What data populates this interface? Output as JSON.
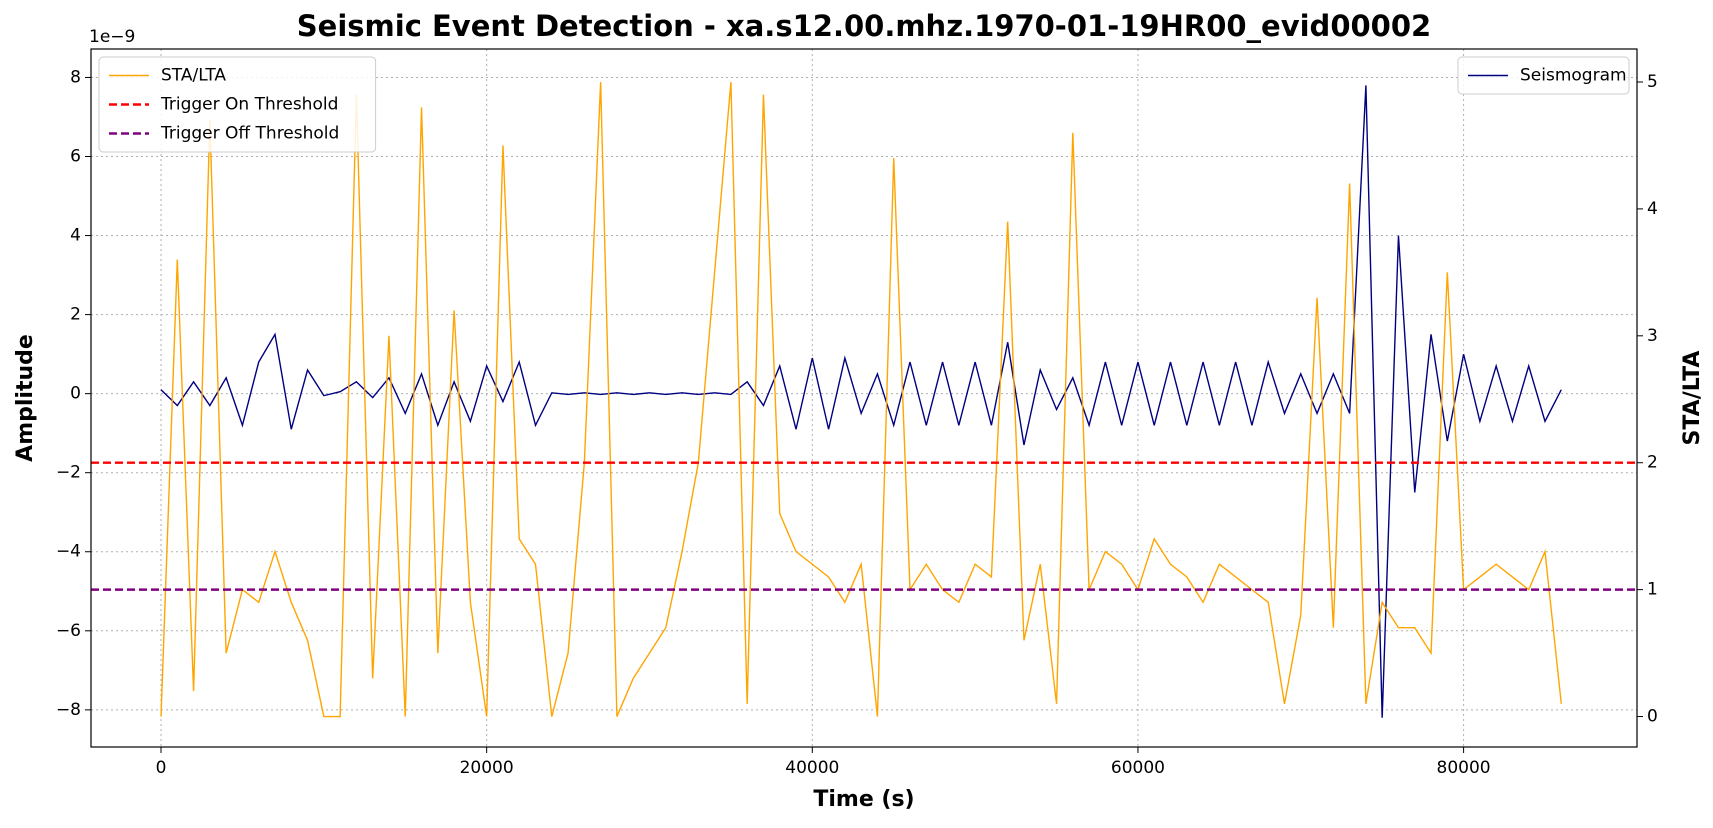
{
  "chart_data": {
    "type": "line",
    "title": "Seismic Event Detection - xa.s12.00.mhz.1970-01-19HR00_evid00002",
    "x_label": "Time (s)",
    "y_label": "Amplitude",
    "y2_label": "STA/LTA",
    "y_offset_label": "1e−9",
    "xlim": [
      -4300,
      90650
    ],
    "ylim": [
      -8.94,
      8.72
    ],
    "y2lim": [
      -0.24,
      5.26
    ],
    "xticks": [
      0,
      20000,
      40000,
      60000,
      80000
    ],
    "yticks": [
      {
        "value": -8,
        "label": "−8"
      },
      {
        "value": -6,
        "label": "−6"
      },
      {
        "value": -4,
        "label": "−4"
      },
      {
        "value": -2,
        "label": "−2"
      },
      0,
      2,
      4,
      6,
      8
    ],
    "y2ticks": [
      0,
      1,
      2,
      3,
      4,
      5
    ],
    "grid": true,
    "x": [
      0,
      1000,
      2000,
      3000,
      4000,
      5000,
      6000,
      7000,
      8000,
      9000,
      10000,
      11000,
      12000,
      13000,
      14000,
      15000,
      16000,
      17000,
      18000,
      19000,
      20000,
      21000,
      22000,
      23000,
      24000,
      25000,
      26000,
      27000,
      28000,
      29000,
      30000,
      31000,
      32000,
      33000,
      34000,
      35000,
      36000,
      37000,
      38000,
      39000,
      40000,
      41000,
      42000,
      43000,
      44000,
      45000,
      46000,
      47000,
      48000,
      49000,
      50000,
      51000,
      52000,
      53000,
      54000,
      55000,
      56000,
      57000,
      58000,
      59000,
      60000,
      61000,
      62000,
      63000,
      64000,
      65000,
      66000,
      67000,
      68000,
      69000,
      70000,
      71000,
      72000,
      73000,
      74000,
      75000,
      76000,
      77000,
      78000,
      79000,
      80000,
      81000,
      82000,
      83000,
      84000,
      85000,
      86000
    ],
    "series": [
      {
        "name": "Seismogram",
        "color": "#000080",
        "axis": "y",
        "legend": "upper right",
        "values": [
          0.1,
          -0.3,
          0.3,
          -0.3,
          0.4,
          -0.8,
          0.8,
          1.5,
          -0.9,
          0.6,
          -0.05,
          0.05,
          0.3,
          -0.1,
          0.4,
          -0.5,
          0.5,
          -0.8,
          0.3,
          -0.7,
          0.7,
          -0.2,
          0.8,
          -0.8,
          0.02,
          -0.02,
          0.02,
          -0.02,
          0.02,
          -0.02,
          0.02,
          -0.02,
          0.02,
          -0.02,
          0.02,
          -0.02,
          0.3,
          -0.3,
          0.7,
          -0.9,
          0.9,
          -0.9,
          0.9,
          -0.5,
          0.5,
          -0.8,
          0.8,
          -0.8,
          0.8,
          -0.8,
          0.8,
          -0.8,
          1.3,
          -1.3,
          0.6,
          -0.4,
          0.4,
          -0.8,
          0.8,
          -0.8,
          0.8,
          -0.8,
          0.8,
          -0.8,
          0.8,
          -0.8,
          0.8,
          -0.8,
          0.8,
          -0.5,
          0.5,
          -0.5,
          0.5,
          -0.5,
          7.8,
          -8.2,
          4.0,
          -2.5,
          1.5,
          -1.2,
          1.0,
          -0.7,
          0.7,
          -0.7,
          0.7,
          -0.7,
          0.1
        ]
      },
      {
        "name": "STA/LTA",
        "color": "#ffa500",
        "axis": "y2",
        "legend": "upper left",
        "values": [
          0,
          3.6,
          0.2,
          4.7,
          0.5,
          1.0,
          0.9,
          1.3,
          0.9,
          0.6,
          0,
          0,
          4.9,
          0.3,
          3.0,
          0.0,
          4.8,
          0.5,
          3.2,
          0.9,
          0.0,
          4.5,
          1.4,
          1.2,
          0,
          0.5,
          2.0,
          5.0,
          0,
          0.3,
          0.5,
          0.7,
          1.3,
          2.0,
          3.5,
          5.0,
          0.1,
          4.9,
          1.6,
          1.3,
          1.2,
          1.1,
          0.9,
          1.2,
          0,
          4.4,
          1.0,
          1.2,
          1.0,
          0.9,
          1.2,
          1.1,
          3.9,
          0.6,
          1.2,
          0.1,
          4.6,
          1.0,
          1.3,
          1.2,
          1.0,
          1.4,
          1.2,
          1.1,
          0.9,
          1.2,
          1.1,
          1.0,
          0.9,
          0.1,
          0.8,
          3.3,
          0.7,
          4.2,
          0.1,
          0.9,
          0.7,
          0.7,
          0.5,
          3.5,
          1.0,
          1.1,
          1.2,
          1.1,
          1.0,
          1.3,
          0.1
        ]
      }
    ],
    "hlines": [
      {
        "name": "Trigger On Threshold",
        "color": "#ff0000",
        "axis": "y2",
        "legend": "upper left",
        "value": 2
      },
      {
        "name": "Trigger Off Threshold",
        "color": "#800080",
        "axis": "y2",
        "legend": "upper left",
        "value": 1
      }
    ]
  }
}
